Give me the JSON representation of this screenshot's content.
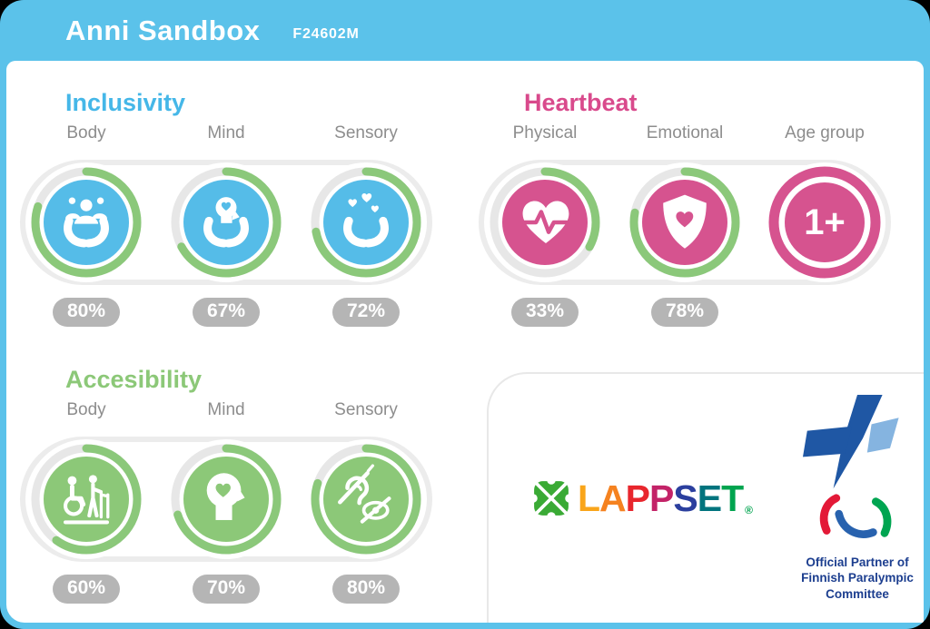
{
  "header": {
    "title": "Anni Sandbox",
    "code": "F24602M"
  },
  "sections": [
    {
      "id": "inclusivity",
      "title": "Inclusivity",
      "items": [
        {
          "label": "Body",
          "value": 80,
          "badge": "80%",
          "icon": "hands-people-icon"
        },
        {
          "label": "Mind",
          "value": 67,
          "badge": "67%",
          "icon": "hands-mind-icon"
        },
        {
          "label": "Sensory",
          "value": 72,
          "badge": "72%",
          "icon": "hands-hearts-icon"
        }
      ]
    },
    {
      "id": "heartbeat",
      "title": "Heartbeat",
      "items": [
        {
          "label": "Physical",
          "value": 33,
          "badge": "33%",
          "icon": "heart-pulse-icon"
        },
        {
          "label": "Emotional",
          "value": 78,
          "badge": "78%",
          "icon": "shield-heart-icon"
        },
        {
          "label": "Age group",
          "text": "1+",
          "icon": "age-group-badge"
        }
      ]
    },
    {
      "id": "accessibility",
      "title": "Accesibility",
      "items": [
        {
          "label": "Body",
          "value": 60,
          "badge": "60%",
          "icon": "wheelchair-assist-icon"
        },
        {
          "label": "Mind",
          "value": 70,
          "badge": "70%",
          "icon": "head-heart-icon"
        },
        {
          "label": "Sensory",
          "value": 80,
          "badge": "80%",
          "icon": "hearing-vision-impairment-icon"
        }
      ]
    }
  ],
  "footer": {
    "lappset": {
      "letters": [
        {
          "ch": "L",
          "color": "#f9a51a"
        },
        {
          "ch": "A",
          "color": "#f58220"
        },
        {
          "ch": "P",
          "color": "#e8262d"
        },
        {
          "ch": "P",
          "color": "#c32368"
        },
        {
          "ch": "S",
          "color": "#2b3f9e"
        },
        {
          "ch": "E",
          "color": "#00747e"
        },
        {
          "ch": "T",
          "color": "#00a44f"
        }
      ],
      "registered": "®"
    },
    "paralympic": {
      "lines": [
        "Official Partner of",
        "Finnish Paralympic",
        "Committee"
      ]
    }
  },
  "colors": {
    "header_blue": "#5bc2ea",
    "inclusivity_blue": "#45b7e8",
    "circle_blue": "#55bce8",
    "heartbeat_pink": "#d94a8c",
    "circle_pink": "#d6538f",
    "accessibility_green": "#8cc878",
    "arc_green": "#8bc87a",
    "ring_gray": "#e7e7e7",
    "badge_gray": "#b5b5b5"
  }
}
